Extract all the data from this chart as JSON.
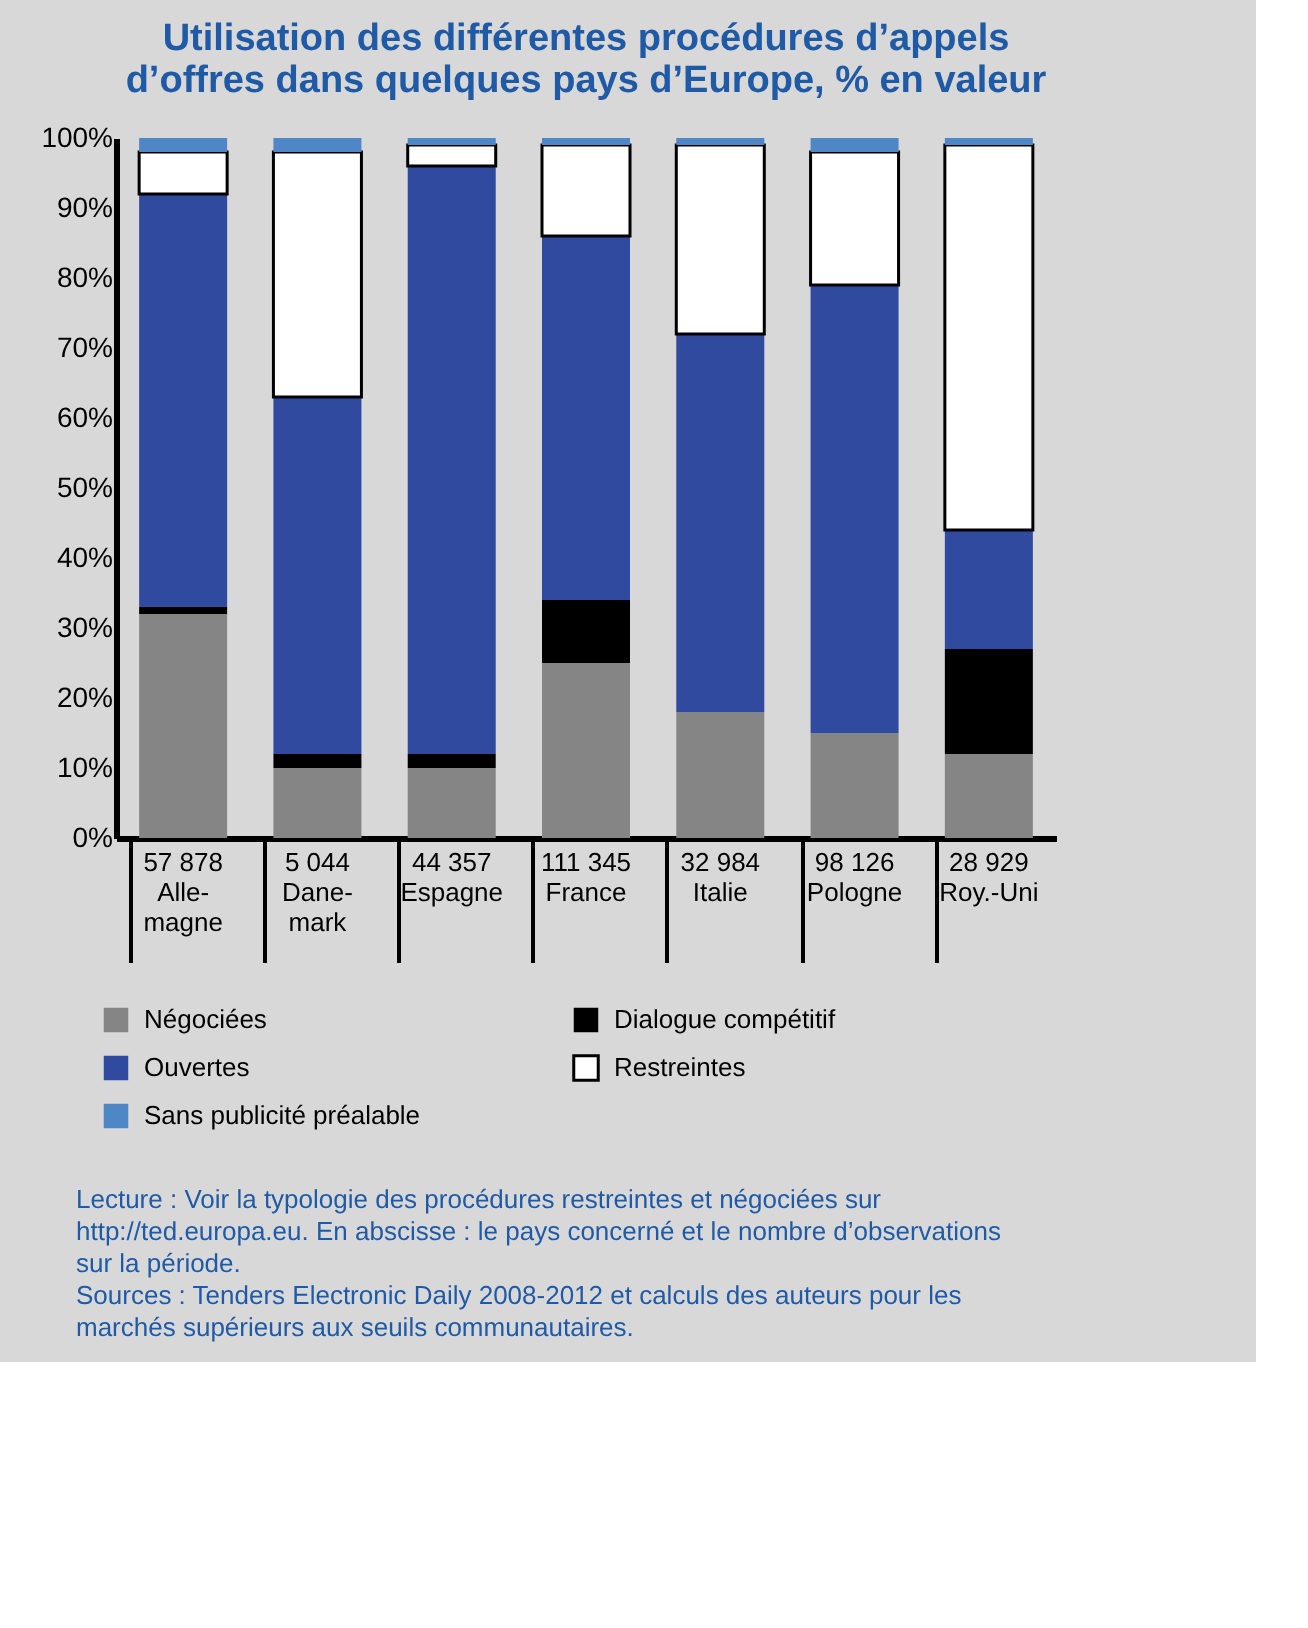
{
  "chart_data": {
    "type": "bar",
    "stacked": true,
    "title": "Utilisation des différentes procédures d’appels\nd’offres dans quelques pays d’Europe,  % en valeur",
    "categories": [
      "57 878\nAlle-\nmagne",
      "5 044\nDane-\nmark",
      "44 357\nEspagne",
      "111 345\nFrance",
      "32 984\nItalie",
      "98 126\nPologne",
      "28 929\nRoy.-Uni"
    ],
    "series": [
      {
        "name": "Négociées",
        "color": "#858585",
        "values": [
          32,
          10,
          10,
          25,
          18,
          15,
          12
        ]
      },
      {
        "name": "Dialogue compétitif",
        "color": "#000000",
        "values": [
          1,
          2,
          2,
          9,
          0,
          0,
          15
        ]
      },
      {
        "name": "Ouvertes",
        "color": "#2f4a9e",
        "values": [
          59,
          51,
          84,
          52,
          54,
          64,
          17
        ]
      },
      {
        "name": "Restreintes",
        "color": "#ffffff",
        "values": [
          6,
          35,
          3,
          13,
          27,
          19,
          55
        ]
      },
      {
        "name": "Sans publicité préalable",
        "color": "#4f86c6",
        "values": [
          2,
          2,
          1,
          1,
          1,
          2,
          1
        ]
      }
    ],
    "ylim": [
      0,
      100
    ],
    "yticks": [
      {
        "value": 0,
        "label": "0%"
      },
      {
        "value": 10,
        "label": "10%"
      },
      {
        "value": 20,
        "label": "20%"
      },
      {
        "value": 30,
        "label": "30%"
      },
      {
        "value": 40,
        "label": "40%"
      },
      {
        "value": 50,
        "label": "50%"
      },
      {
        "value": 60,
        "label": "60%"
      },
      {
        "value": 70,
        "label": "70%"
      },
      {
        "value": 80,
        "label": "80%"
      },
      {
        "value": 90,
        "label": "90%"
      },
      {
        "value": 100,
        "label": "100%"
      }
    ],
    "legend": "bottom",
    "annotations": [
      "Lecture : Voir la typologie des procédures restreintes et négociées sur http://ted.europa.eu. En abscisse : le pays concerné et le nombre d’observations sur la période.",
      "Sources : Tenders Electronic Daily 2008-2012 et calculs des auteurs pour les marchés supérieurs aux seuils communautaires."
    ]
  }
}
